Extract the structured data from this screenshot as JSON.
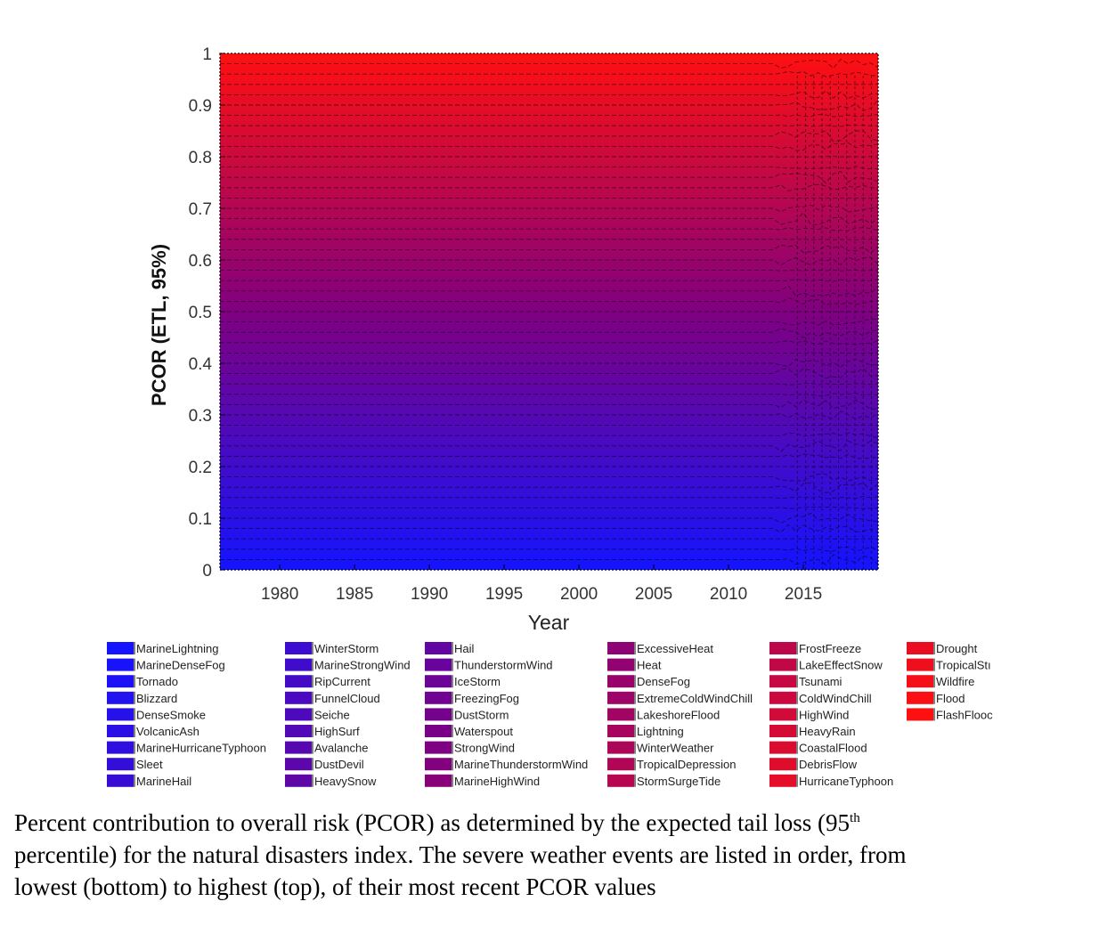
{
  "caption": {
    "line1_before": "Percent contribution to overall risk (PCOR) as determined by the expected tail loss (95",
    "line1_sup": "th",
    "line2": "percentile) for the natural disasters index. The severe weather events are listed in order, from",
    "line3": "lowest (bottom) to highest (top), of their most recent PCOR values"
  },
  "chart_data": {
    "type": "area",
    "subtype": "stacked-100-percent",
    "title": "",
    "xlabel": "Year",
    "ylabel": "PCOR (ETL, 95%)",
    "xlim": [
      1976,
      2020
    ],
    "ylim": [
      0,
      1
    ],
    "xticks": [
      1980,
      1985,
      1990,
      1995,
      2000,
      2005,
      2010,
      2015
    ],
    "yticks": [
      0,
      0.1,
      0.2,
      0.3,
      0.4,
      0.5,
      0.6,
      0.7,
      0.8,
      0.9,
      1
    ],
    "grid": false,
    "legend_location": "bottom",
    "color_gradient": {
      "bottom": "#1414ff",
      "middle": "#800080",
      "top": "#ff1010"
    },
    "legend_columns": [
      [
        "MarineLightning",
        "MarineDenseFog",
        "Tornado",
        "Blizzard",
        "DenseSmoke",
        "VolcanicAsh",
        "MarineHurricaneTyphoon",
        "Sleet",
        "MarineHail"
      ],
      [
        "WinterStorm",
        "MarineStrongWind",
        "RipCurrent",
        "FunnelCloud",
        "Seiche",
        "HighSurf",
        "Avalanche",
        "DustDevil",
        "HeavySnow"
      ],
      [
        "Hail",
        "ThunderstormWind",
        "IceStorm",
        "FreezingFog",
        "DustStorm",
        "Waterspout",
        "StrongWind",
        "MarineThunderstormWind",
        "MarineHighWind"
      ],
      [
        "ExcessiveHeat",
        "Heat",
        "DenseFog",
        "ExtremeColdWindChill",
        "LakeshoreFlood",
        "Lightning",
        "WinterWeather",
        "TropicalDepression",
        "StormSurgeTide"
      ],
      [
        "FrostFreeze",
        "LakeEffectSnow",
        "Tsunami",
        "ColdWindChill",
        "HighWind",
        "HeavyRain",
        "CoastalFlood",
        "DebrisFlow",
        "HurricaneTyphoon"
      ],
      [
        "Drought",
        "TropicalStı",
        "Wildfire",
        "Flood",
        "FlashFlooc"
      ]
    ],
    "series_count": 50,
    "series_order_note_from_caption": "lowest (bottom) to highest (top)",
    "boundary_pattern": {
      "constant_until_year": 2013,
      "disturbed_from_year": 2013.5,
      "shares_evenly_spaced": true
    }
  }
}
